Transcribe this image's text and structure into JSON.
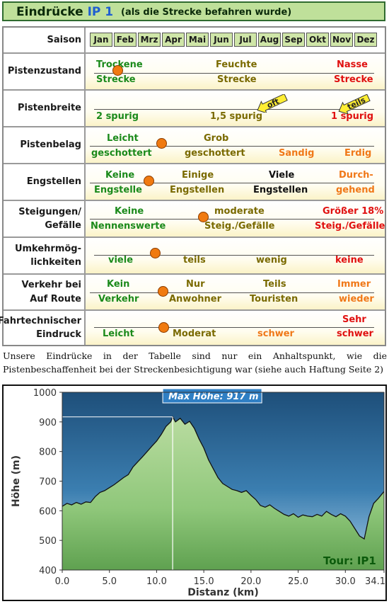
{
  "header": {
    "title_prefix": "Eindrücke",
    "title_ip": "IP 1",
    "subtitle": "(als die Strecke befahren wurde)"
  },
  "table": {
    "season_label": "Saison",
    "months": [
      "Jan",
      "Feb",
      "Mrz",
      "Apr",
      "Mai",
      "Jun",
      "Jul",
      "Aug",
      "Sep",
      "Okt",
      "Nov",
      "Dez"
    ],
    "rows": [
      {
        "label": "Pistenzustand",
        "cells": [
          [
            "Trockene",
            "Strecke"
          ],
          [
            "Feuchte",
            "Strecke"
          ],
          [
            "Nasse",
            "Strecke"
          ]
        ]
      },
      {
        "label": "Pistenbreite",
        "cells": [
          [
            "2 spurig"
          ],
          [
            "1,5 spurig"
          ],
          [
            "1 spurig"
          ]
        ],
        "flags": [
          "oft",
          "teils"
        ]
      },
      {
        "label": "Pistenbelag",
        "cells": [
          [
            "Leicht",
            "geschottert"
          ],
          [
            "Grob",
            "geschottert"
          ],
          [
            "Sandig"
          ],
          [
            "Erdig"
          ]
        ]
      },
      {
        "label": "Engstellen",
        "cells": [
          [
            "Keine",
            "Engstelle"
          ],
          [
            "Einige",
            "Engstellen"
          ],
          [
            "Viele",
            "Engstellen"
          ],
          [
            "Durch-",
            "gehend"
          ]
        ]
      },
      {
        "label": "Steigungen/ Gefälle",
        "cells": [
          [
            "Keine",
            "Nennenswerte"
          ],
          [
            "moderate",
            "Steig./Gefälle"
          ],
          [
            "Größer 18%",
            "Steig./Gefälle"
          ]
        ]
      },
      {
        "label": "Umkehrmög- lichkeiten",
        "cells": [
          [
            "viele"
          ],
          [
            "teils"
          ],
          [
            "wenig"
          ],
          [
            "keine"
          ]
        ]
      },
      {
        "label": "Verkehr bei Auf Route",
        "cells": [
          [
            "Kein",
            "Verkehr"
          ],
          [
            "Nur",
            "Anwohner"
          ],
          [
            "Teils",
            "Touristen"
          ],
          [
            "Immer",
            "wieder"
          ]
        ]
      },
      {
        "label": "Fahrtechnischer Eindruck",
        "cells": [
          [
            "Leicht"
          ],
          [
            "Moderat"
          ],
          [
            "schwer"
          ],
          [
            "Sehr",
            "schwer"
          ]
        ]
      }
    ]
  },
  "note": "Unsere Eindrücke in der Tabelle sind nur ein Anhaltspunkt, wie die Pistenbeschaffenheit bei der Streckenbesichtigung war (siehe auch Haftung Seite 2)",
  "colors": {
    "title_bg": "#bfe09a",
    "month_bg": "#cfe6a8",
    "marker": "#f07a10",
    "flag": "#ffee33",
    "plot_bg": "#2f6b94",
    "area": "#8fc77a"
  },
  "chart_data": {
    "type": "area",
    "xlabel": "Distanz  (km)",
    "ylabel": "Höhe  (m)",
    "xlim": [
      0,
      34.1
    ],
    "ylim": [
      400,
      1000
    ],
    "xticks": [
      "0.0",
      "5.0",
      "10.0",
      "15.0",
      "20.0",
      "25.0",
      "30.0",
      "34.1"
    ],
    "yticks": [
      "400",
      "500",
      "600",
      "700",
      "800",
      "900",
      "1000"
    ],
    "annotation": "Max Höhe: 917 m",
    "annotation_x": 11.7,
    "annotation_y": 917,
    "tour_label": "Tour: IP1",
    "series": [
      {
        "x": [
          0,
          0.5,
          1,
          1.5,
          2,
          2.5,
          3,
          3.5,
          4,
          4.5,
          5,
          5.5,
          6,
          6.5,
          7,
          7.5,
          8,
          8.5,
          9,
          9.5,
          10,
          10.5,
          11,
          11.5,
          11.7,
          12,
          12.5,
          13,
          13.5,
          14,
          14.5,
          15,
          15.5,
          16,
          16.5,
          17,
          17.5,
          18,
          18.5,
          19,
          19.5,
          20,
          20.5,
          21,
          21.5,
          22,
          22.5,
          23,
          23.5,
          24,
          24.5,
          25,
          25.5,
          26,
          26.5,
          27,
          27.5,
          28,
          28.5,
          29,
          29.5,
          30,
          30.5,
          31,
          31.5,
          32,
          32.5,
          33,
          33.5,
          34.1
        ],
        "y": [
          615,
          625,
          620,
          628,
          622,
          630,
          628,
          648,
          662,
          668,
          678,
          688,
          700,
          712,
          722,
          748,
          765,
          782,
          800,
          818,
          835,
          858,
          885,
          900,
          917,
          900,
          912,
          892,
          902,
          878,
          842,
          812,
          772,
          742,
          712,
          692,
          682,
          672,
          668,
          662,
          668,
          652,
          638,
          618,
          612,
          620,
          608,
          598,
          588,
          582,
          590,
          578,
          586,
          582,
          580,
          588,
          582,
          598,
          588,
          580,
          590,
          582,
          565,
          540,
          515,
          505,
          580,
          625,
          642,
          665
        ]
      }
    ]
  }
}
